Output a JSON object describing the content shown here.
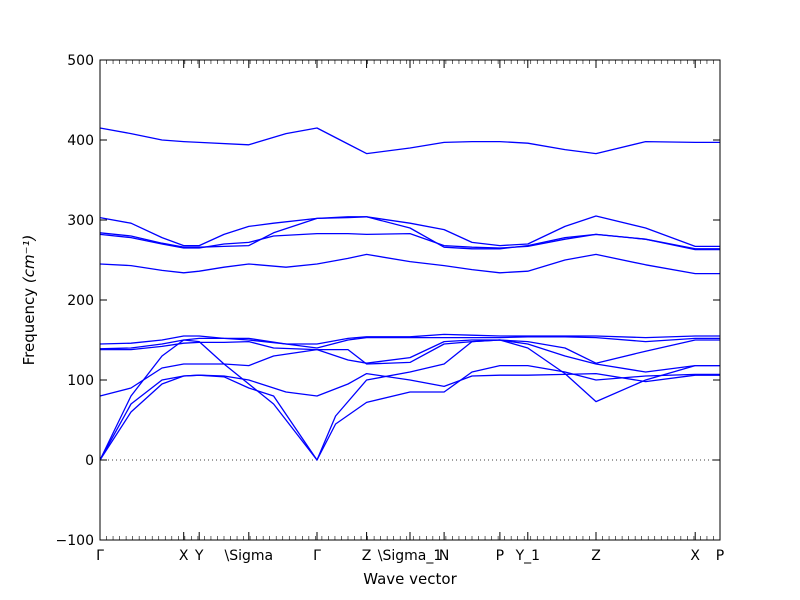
{
  "chart_data": {
    "type": "line",
    "title": "",
    "xlabel": "Wave vector",
    "ylabel": "Frequency",
    "ylabel_unit": "(cm⁻¹)",
    "ylim": [
      -100,
      500
    ],
    "y_ticks": [
      -100,
      0,
      100,
      200,
      300,
      400,
      500
    ],
    "x_ticks": [
      {
        "pos": 0.0,
        "label": "Γ"
      },
      {
        "pos": 0.135,
        "label": "X"
      },
      {
        "pos": 0.16,
        "label": "Y"
      },
      {
        "pos": 0.24,
        "label": "\\Sigma"
      },
      {
        "pos": 0.35,
        "label": "Γ"
      },
      {
        "pos": 0.43,
        "label": "Z"
      },
      {
        "pos": 0.5,
        "label": "\\Sigma_1"
      },
      {
        "pos": 0.555,
        "label": "N"
      },
      {
        "pos": 0.645,
        "label": "P"
      },
      {
        "pos": 0.69,
        "label": "Y_1"
      },
      {
        "pos": 0.8,
        "label": "Z"
      },
      {
        "pos": 0.96,
        "label": "X"
      },
      {
        "pos": 1.0,
        "label": "P"
      }
    ],
    "zero_line": true,
    "line_color": "#0000ff",
    "series": [
      {
        "x": [
          0,
          0.05,
          0.1,
          0.135,
          0.16,
          0.24,
          0.3,
          0.35,
          0.4,
          0.43,
          0.5,
          0.555,
          0.6,
          0.645,
          0.69,
          0.75,
          0.8,
          0.88,
          0.96,
          1.0
        ],
        "y": [
          415,
          408,
          400,
          398,
          397,
          394,
          408,
          415,
          395,
          383,
          390,
          397,
          398,
          398,
          396,
          388,
          383,
          398,
          397,
          397
        ]
      },
      {
        "x": [
          0,
          0.05,
          0.1,
          0.135,
          0.16,
          0.2,
          0.24,
          0.28,
          0.35,
          0.4,
          0.43,
          0.5,
          0.555,
          0.6,
          0.645,
          0.69,
          0.75,
          0.8,
          0.88,
          0.96,
          1.0
        ],
        "y": [
          303,
          296,
          278,
          268,
          268,
          282,
          292,
          296,
          302,
          304,
          304,
          296,
          288,
          272,
          268,
          270,
          292,
          305,
          290,
          267,
          267
        ]
      },
      {
        "x": [
          0,
          0.05,
          0.1,
          0.135,
          0.16,
          0.2,
          0.24,
          0.28,
          0.35,
          0.4,
          0.43,
          0.5,
          0.555,
          0.6,
          0.645,
          0.69,
          0.75,
          0.8,
          0.88,
          0.96,
          1.0
        ],
        "y": [
          284,
          280,
          271,
          266,
          266,
          267,
          268,
          284,
          302,
          303,
          304,
          290,
          266,
          264,
          264,
          268,
          278,
          282,
          276,
          264,
          264
        ]
      },
      {
        "x": [
          0,
          0.05,
          0.1,
          0.135,
          0.16,
          0.2,
          0.24,
          0.28,
          0.35,
          0.4,
          0.43,
          0.5,
          0.555,
          0.6,
          0.645,
          0.69,
          0.75,
          0.8,
          0.88,
          0.96,
          1.0
        ],
        "y": [
          282,
          278,
          270,
          265,
          265,
          270,
          272,
          280,
          283,
          283,
          282,
          283,
          268,
          266,
          265,
          267,
          276,
          282,
          276,
          263,
          263
        ]
      },
      {
        "x": [
          0,
          0.05,
          0.1,
          0.135,
          0.16,
          0.2,
          0.24,
          0.3,
          0.35,
          0.4,
          0.43,
          0.5,
          0.555,
          0.6,
          0.645,
          0.69,
          0.75,
          0.8,
          0.88,
          0.96,
          1.0
        ],
        "y": [
          245,
          243,
          237,
          234,
          236,
          241,
          245,
          241,
          245,
          252,
          257,
          248,
          243,
          238,
          234,
          236,
          250,
          257,
          244,
          233,
          233
        ]
      },
      {
        "x": [
          0,
          0.05,
          0.1,
          0.135,
          0.16,
          0.2,
          0.24,
          0.3,
          0.35,
          0.4,
          0.43,
          0.5,
          0.555,
          0.6,
          0.645,
          0.69,
          0.75,
          0.8,
          0.88,
          0.96,
          1.0
        ],
        "y": [
          145,
          146,
          150,
          155,
          155,
          152,
          150,
          145,
          145,
          152,
          154,
          154,
          157,
          156,
          155,
          155,
          155,
          155,
          153,
          155,
          155
        ]
      },
      {
        "x": [
          0,
          0.05,
          0.1,
          0.135,
          0.16,
          0.2,
          0.24,
          0.3,
          0.35,
          0.4,
          0.43,
          0.5,
          0.555,
          0.6,
          0.645,
          0.69,
          0.75,
          0.8,
          0.88,
          0.96,
          1.0
        ],
        "y": [
          139,
          140,
          145,
          150,
          152,
          152,
          152,
          145,
          140,
          150,
          153,
          153,
          153,
          153,
          153,
          154,
          154,
          153,
          148,
          152,
          152
        ]
      },
      {
        "x": [
          0,
          0.05,
          0.1,
          0.135,
          0.16,
          0.2,
          0.24,
          0.28,
          0.35,
          0.4,
          0.43,
          0.5,
          0.555,
          0.6,
          0.645,
          0.69,
          0.75,
          0.8,
          0.88,
          0.96,
          1.0
        ],
        "y": [
          138,
          138,
          142,
          146,
          147,
          147,
          148,
          140,
          138,
          125,
          121,
          128,
          148,
          150,
          150,
          148,
          140,
          121,
          136,
          150,
          150
        ]
      },
      {
        "x": [
          0,
          0.05,
          0.1,
          0.135,
          0.16,
          0.2,
          0.24,
          0.28,
          0.35,
          0.4,
          0.43,
          0.5,
          0.555,
          0.6,
          0.645,
          0.69,
          0.75,
          0.8,
          0.88,
          0.96,
          1.0
        ],
        "y": [
          80,
          90,
          115,
          120,
          120,
          120,
          118,
          130,
          138,
          138,
          120,
          122,
          145,
          148,
          150,
          145,
          130,
          120,
          110,
          118,
          118
        ]
      },
      {
        "x": [
          0,
          0.05,
          0.1,
          0.135,
          0.16,
          0.2,
          0.24,
          0.28,
          0.35,
          0.38,
          0.43,
          0.5,
          0.555,
          0.6,
          0.645,
          0.69,
          0.75,
          0.8,
          0.88,
          0.96,
          1.0
        ],
        "y": [
          0,
          80,
          130,
          150,
          148,
          120,
          95,
          70,
          0,
          55,
          100,
          110,
          120,
          148,
          150,
          140,
          108,
          73,
          100,
          118,
          118
        ]
      },
      {
        "x": [
          0,
          0.05,
          0.1,
          0.135,
          0.16,
          0.2,
          0.24,
          0.28,
          0.35,
          0.38,
          0.43,
          0.5,
          0.555,
          0.6,
          0.645,
          0.69,
          0.75,
          0.8,
          0.88,
          0.96,
          1.0
        ],
        "y": [
          0,
          70,
          100,
          105,
          106,
          104,
          90,
          80,
          0,
          45,
          72,
          85,
          85,
          110,
          118,
          118,
          110,
          100,
          105,
          107,
          107
        ]
      },
      {
        "x": [
          0,
          0.05,
          0.1,
          0.135,
          0.16,
          0.2,
          0.24,
          0.3,
          0.35,
          0.4,
          0.43,
          0.5,
          0.555,
          0.6,
          0.645,
          0.69,
          0.75,
          0.8,
          0.88,
          0.96,
          1.0
        ],
        "y": [
          0,
          60,
          95,
          105,
          106,
          105,
          100,
          85,
          80,
          95,
          108,
          100,
          92,
          105,
          106,
          106,
          107,
          108,
          98,
          106,
          106
        ]
      }
    ]
  }
}
